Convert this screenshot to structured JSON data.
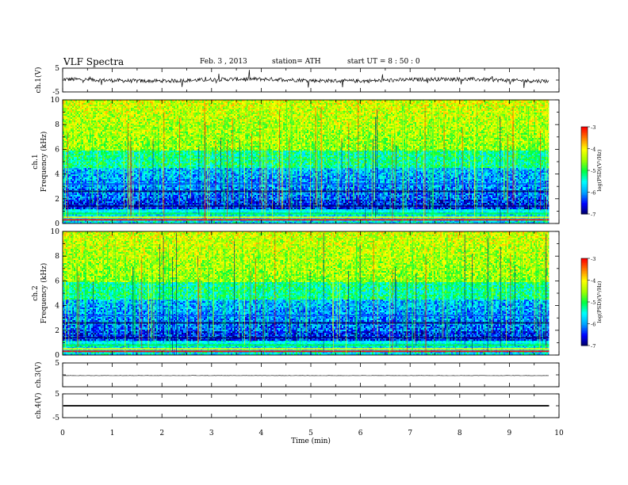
{
  "header": {
    "title": "VLF  Spectra",
    "date": "Feb. 3  , 2013",
    "station": "station= ATH",
    "start_ut": "start  UT  =   8  : 50 : 0"
  },
  "chart_data": {
    "type": "spectrogram",
    "xlabel": "Time  (min)",
    "xlim": [
      0,
      10
    ],
    "x_ticks": [
      "0",
      "1",
      "2",
      "3",
      "4",
      "5",
      "6",
      "7",
      "8",
      "9",
      "10"
    ],
    "data_end_min": 9.8,
    "panels": [
      {
        "id": "ch1-waveform",
        "type": "line",
        "ylabel": "ch.1(V)",
        "ylim": [
          -5,
          5
        ],
        "y_ticks": [
          "5",
          "-5"
        ],
        "amplitude": "noisy",
        "color": "#000000"
      },
      {
        "id": "ch1-spectrogram",
        "type": "heatmap",
        "ylabel_top": "ch.1",
        "ylabel": "Frequency  (kHz)",
        "ylim": [
          0,
          10
        ],
        "y_ticks": [
          "0",
          "2",
          "4",
          "6",
          "8",
          "10"
        ],
        "colorbar": {
          "label": "log(PSD)(V²/Hz)",
          "range": [
            -7,
            -3
          ],
          "ticks": [
            "-3",
            "-4",
            "-5",
            "-6",
            "-7"
          ]
        }
      },
      {
        "id": "ch2-spectrogram",
        "type": "heatmap",
        "ylabel_top": "ch.2",
        "ylabel": "Frequency  (kHz)",
        "ylim": [
          0,
          10
        ],
        "y_ticks": [
          "0",
          "2",
          "4",
          "6",
          "8",
          "10"
        ],
        "colorbar": {
          "label": "log(PSD)(V²/Hz)",
          "range": [
            -7,
            -3
          ],
          "ticks": [
            "-3",
            "-4",
            "-5",
            "-6",
            "-7"
          ]
        }
      },
      {
        "id": "ch3-waveform",
        "type": "line",
        "ylabel": "ch.3(V)",
        "ylim": [
          -5,
          5
        ],
        "y_ticks": [
          "5"
        ],
        "amplitude": "flat",
        "color": "#000000"
      },
      {
        "id": "ch4-waveform",
        "type": "line",
        "ylabel": "ch.4(V)",
        "ylim": [
          -5,
          5
        ],
        "y_ticks": [
          "5",
          "-5"
        ],
        "amplitude": "thick-flat",
        "color": "#000000"
      }
    ],
    "colormap": [
      "#000060",
      "#0000ff",
      "#00a0ff",
      "#00ffff",
      "#00ff40",
      "#a0ff00",
      "#ffff00",
      "#ff8000",
      "#ff0000",
      "#ffffff"
    ]
  }
}
